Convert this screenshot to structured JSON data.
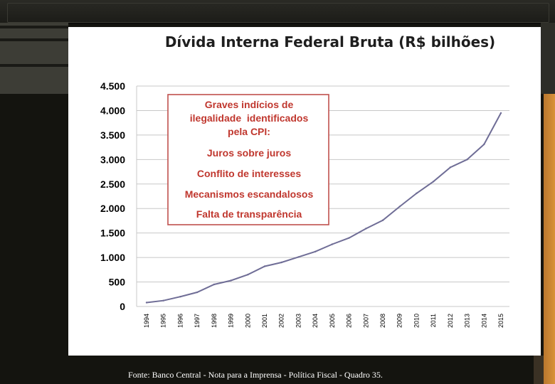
{
  "chart_data": {
    "type": "line",
    "title": "Dívida Interna Federal Bruta (R$ bilhões)",
    "xlabel": "",
    "ylabel": "",
    "ylim": [
      0,
      4500
    ],
    "y_ticks": [
      0,
      500,
      1000,
      1500,
      2000,
      2500,
      3000,
      3500,
      4000,
      4500
    ],
    "y_tick_labels": [
      "0",
      "500",
      "1.000",
      "1.500",
      "2.000",
      "2.500",
      "3.000",
      "3.500",
      "4.000",
      "4.500"
    ],
    "x_tick_labels": [
      "1994",
      "1995",
      "1996",
      "1997",
      "1998",
      "1999",
      "2000",
      "2001",
      "2002",
      "2003",
      "2004",
      "2005",
      "2006",
      "2007",
      "2008",
      "2009",
      "2010",
      "2011",
      "2012",
      "2013",
      "2014",
      "2015"
    ],
    "grid": true,
    "series": [
      {
        "name": "Dívida Interna Federal Bruta",
        "color": "#6f6d96",
        "values": [
          80,
          120,
          200,
          290,
          450,
          530,
          650,
          820,
          900,
          1010,
          1120,
          1270,
          1400,
          1590,
          1760,
          2040,
          2310,
          2550,
          2840,
          3000,
          3310,
          3950
        ]
      }
    ],
    "annotation_lines": [
      "Graves indícios de",
      "ilegalidade  identificados",
      "pela CPI:",
      "Juros sobre juros",
      "Conflito de interesses",
      "Mecanismos escandalosos",
      "Falta de transparência"
    ],
    "annotation_color": "#c0504d"
  },
  "source_text": "Fonte: Banco Central - Nota para a Imprensa - Política Fiscal - Quadro 35."
}
